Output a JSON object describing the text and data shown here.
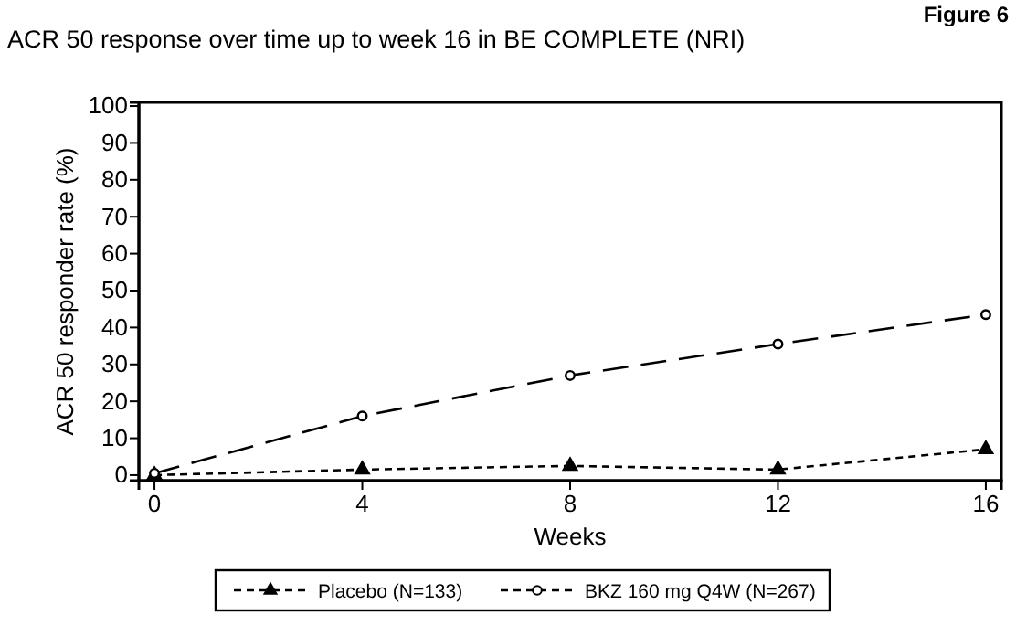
{
  "chart_data": {
    "type": "line",
    "title": "ACR 50 response over time up to week 16 in BE COMPLETE (NRI)",
    "annotations": [
      "Figure 6"
    ],
    "xlabel": "Weeks",
    "ylabel": "ACR 50 responder rate  (%)",
    "x": [
      0,
      4,
      8,
      12,
      16
    ],
    "xlim": [
      -0.3,
      16.3
    ],
    "xticks": [
      0,
      4,
      8,
      12,
      16
    ],
    "ylim": [
      -1.5,
      101
    ],
    "yticks": [
      0,
      10,
      20,
      30,
      40,
      50,
      60,
      70,
      80,
      90,
      100
    ],
    "grid": false,
    "legend": "bottom",
    "series": [
      {
        "name": "Placebo (N=133)",
        "color": "#000000",
        "values": [
          0,
          1.5,
          2.5,
          1.5,
          7
        ],
        "marker": "triangle",
        "line_style": "dotted"
      },
      {
        "name": "BKZ 160 mg Q4W  (N=267)",
        "color": "#000000",
        "values": [
          0.5,
          16,
          27,
          35.5,
          43.5
        ],
        "marker": "circle",
        "line_style": "dashed"
      }
    ]
  }
}
